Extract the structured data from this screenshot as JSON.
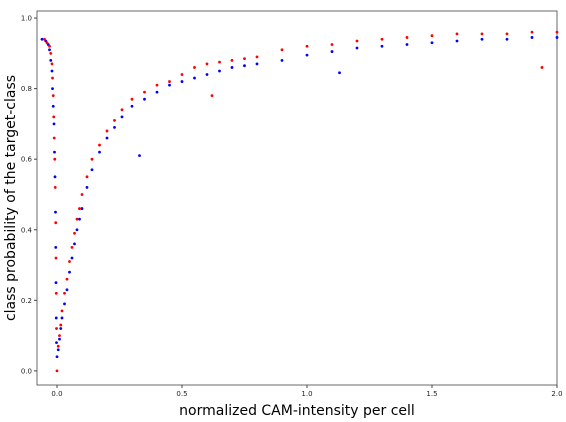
{
  "chart_data": {
    "type": "scatter",
    "title": "",
    "xlabel": "normalized CAM-intensity per cell",
    "ylabel": "class probability of the target-class",
    "xlim": [
      -0.08,
      2.0
    ],
    "ylim": [
      -0.04,
      1.02
    ],
    "xticks": [
      "0.0",
      "0.5",
      "1.0",
      "1.5",
      "2.0"
    ],
    "yticks": [
      "0.0",
      "0.2",
      "0.4",
      "0.6",
      "0.8",
      "1.0"
    ],
    "grid": false,
    "legend": "none",
    "series": [
      {
        "color": "#0000ff",
        "points": [
          [
            -0.06,
            0.94
          ],
          [
            -0.045,
            0.935
          ],
          [
            -0.035,
            0.925
          ],
          [
            -0.03,
            0.91
          ],
          [
            -0.025,
            0.88
          ],
          [
            -0.02,
            0.85
          ],
          [
            -0.018,
            0.8
          ],
          [
            -0.015,
            0.75
          ],
          [
            -0.012,
            0.7
          ],
          [
            -0.01,
            0.62
          ],
          [
            -0.008,
            0.55
          ],
          [
            -0.006,
            0.45
          ],
          [
            -0.005,
            0.35
          ],
          [
            -0.004,
            0.25
          ],
          [
            -0.003,
            0.15
          ],
          [
            -0.002,
            0.08
          ],
          [
            0.0,
            0.04
          ],
          [
            0.005,
            0.06
          ],
          [
            0.01,
            0.09
          ],
          [
            0.015,
            0.12
          ],
          [
            0.02,
            0.15
          ],
          [
            0.03,
            0.19
          ],
          [
            0.04,
            0.23
          ],
          [
            0.05,
            0.28
          ],
          [
            0.06,
            0.32
          ],
          [
            0.07,
            0.36
          ],
          [
            0.08,
            0.4
          ],
          [
            0.09,
            0.43
          ],
          [
            0.1,
            0.46
          ],
          [
            0.12,
            0.52
          ],
          [
            0.14,
            0.57
          ],
          [
            0.17,
            0.62
          ],
          [
            0.2,
            0.66
          ],
          [
            0.23,
            0.69
          ],
          [
            0.26,
            0.72
          ],
          [
            0.3,
            0.75
          ],
          [
            0.33,
            0.61
          ],
          [
            0.35,
            0.77
          ],
          [
            0.4,
            0.79
          ],
          [
            0.45,
            0.81
          ],
          [
            0.5,
            0.82
          ],
          [
            0.55,
            0.83
          ],
          [
            0.6,
            0.84
          ],
          [
            0.65,
            0.85
          ],
          [
            0.7,
            0.86
          ],
          [
            0.75,
            0.865
          ],
          [
            0.8,
            0.87
          ],
          [
            0.9,
            0.88
          ],
          [
            1.0,
            0.895
          ],
          [
            1.1,
            0.905
          ],
          [
            1.13,
            0.845
          ],
          [
            1.2,
            0.915
          ],
          [
            1.3,
            0.92
          ],
          [
            1.4,
            0.925
          ],
          [
            1.5,
            0.93
          ],
          [
            1.6,
            0.935
          ],
          [
            1.7,
            0.94
          ],
          [
            1.8,
            0.94
          ],
          [
            1.9,
            0.945
          ],
          [
            2.0,
            0.945
          ]
        ]
      },
      {
        "color": "#ff0000",
        "points": [
          [
            -0.05,
            0.94
          ],
          [
            -0.04,
            0.93
          ],
          [
            -0.03,
            0.92
          ],
          [
            -0.025,
            0.9
          ],
          [
            -0.02,
            0.87
          ],
          [
            -0.018,
            0.83
          ],
          [
            -0.015,
            0.78
          ],
          [
            -0.013,
            0.72
          ],
          [
            -0.011,
            0.66
          ],
          [
            -0.009,
            0.6
          ],
          [
            -0.007,
            0.52
          ],
          [
            -0.005,
            0.42
          ],
          [
            -0.004,
            0.32
          ],
          [
            -0.003,
            0.22
          ],
          [
            -0.002,
            0.12
          ],
          [
            0.0,
            0.0
          ],
          [
            0.005,
            0.07
          ],
          [
            0.01,
            0.1
          ],
          [
            0.015,
            0.13
          ],
          [
            0.02,
            0.17
          ],
          [
            0.03,
            0.22
          ],
          [
            0.04,
            0.26
          ],
          [
            0.05,
            0.31
          ],
          [
            0.06,
            0.35
          ],
          [
            0.07,
            0.39
          ],
          [
            0.08,
            0.43
          ],
          [
            0.09,
            0.46
          ],
          [
            0.1,
            0.5
          ],
          [
            0.12,
            0.55
          ],
          [
            0.14,
            0.6
          ],
          [
            0.17,
            0.64
          ],
          [
            0.2,
            0.68
          ],
          [
            0.23,
            0.71
          ],
          [
            0.26,
            0.74
          ],
          [
            0.3,
            0.77
          ],
          [
            0.35,
            0.79
          ],
          [
            0.4,
            0.81
          ],
          [
            0.45,
            0.82
          ],
          [
            0.5,
            0.84
          ],
          [
            0.55,
            0.86
          ],
          [
            0.6,
            0.87
          ],
          [
            0.62,
            0.78
          ],
          [
            0.65,
            0.875
          ],
          [
            0.7,
            0.88
          ],
          [
            0.75,
            0.885
          ],
          [
            0.8,
            0.89
          ],
          [
            0.9,
            0.91
          ],
          [
            1.0,
            0.92
          ],
          [
            1.1,
            0.925
          ],
          [
            1.2,
            0.935
          ],
          [
            1.3,
            0.94
          ],
          [
            1.4,
            0.945
          ],
          [
            1.5,
            0.95
          ],
          [
            1.6,
            0.955
          ],
          [
            1.7,
            0.955
          ],
          [
            1.8,
            0.955
          ],
          [
            1.9,
            0.96
          ],
          [
            1.94,
            0.86
          ],
          [
            2.0,
            0.96
          ]
        ]
      }
    ]
  }
}
